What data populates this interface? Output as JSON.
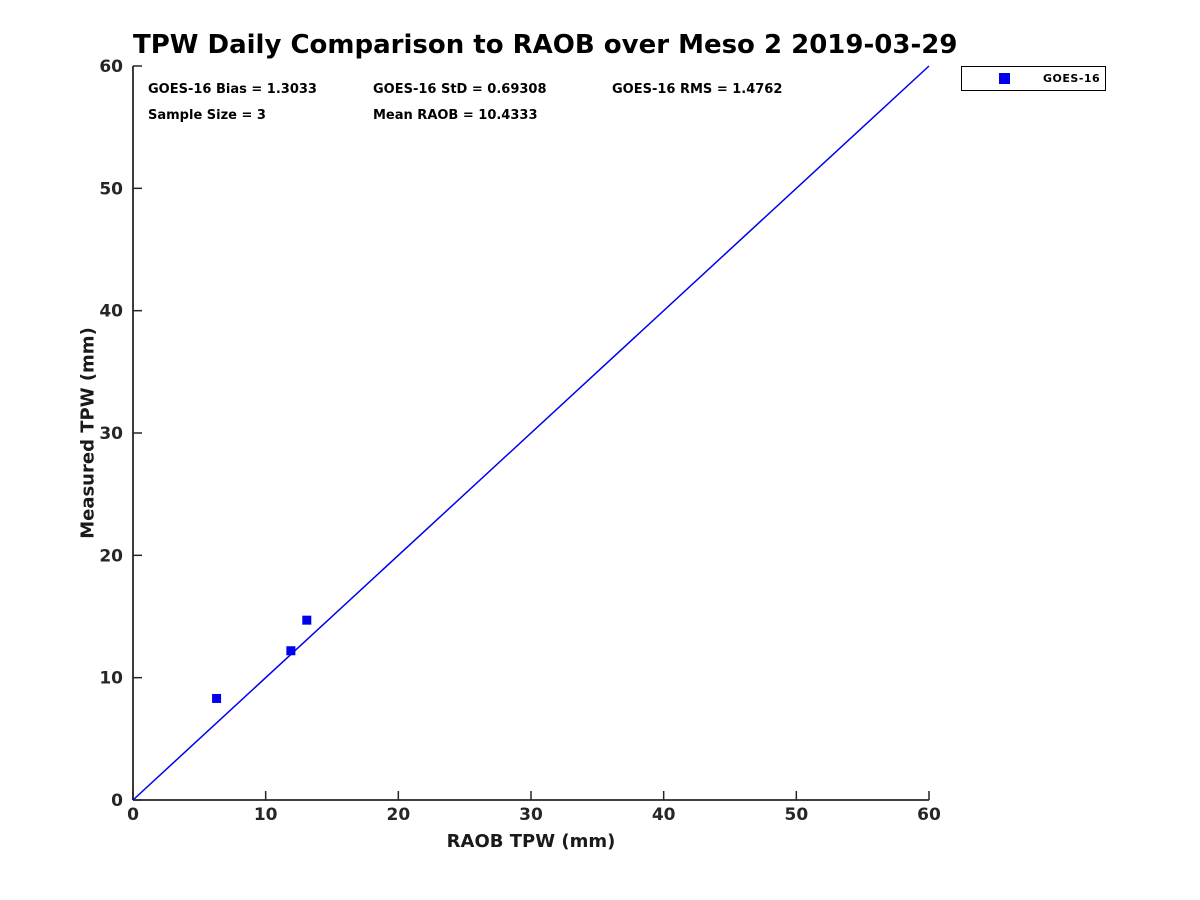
{
  "page": {
    "background": "#ffffff"
  },
  "stats": {
    "bias": "GOES-16 Bias = 1.3033",
    "std": "GOES-16 StD = 0.69308",
    "rms": "GOES-16 RMS = 1.4762",
    "sample_size": "Sample Size = 3",
    "mean_raob": "Mean RAOB = 10.4333"
  },
  "legend": {
    "entries": [
      {
        "label": "GOES-16",
        "marker": "square-icon",
        "color": "#0000ee"
      }
    ]
  },
  "chart_data": {
    "type": "scatter",
    "title": "TPW Daily Comparison to RAOB over Meso 2 2019-03-29",
    "xlabel": "RAOB TPW (mm)",
    "ylabel": "Measured TPW (mm)",
    "xlim": [
      0,
      60
    ],
    "ylim": [
      0,
      60
    ],
    "xticks": [
      0,
      10,
      20,
      30,
      40,
      50,
      60
    ],
    "yticks": [
      0,
      10,
      20,
      30,
      40,
      50,
      60
    ],
    "grid": false,
    "legend_position": "outside-top-right",
    "axis_color": "#262626",
    "series": [
      {
        "name": "GOES-16",
        "type": "scatter",
        "marker": "square",
        "color": "#0000ee",
        "marker_size_px": 9,
        "points": [
          [
            6.3,
            8.3
          ],
          [
            11.9,
            12.2
          ],
          [
            13.1,
            14.7
          ]
        ]
      }
    ],
    "reference_line": {
      "label": "1:1 line",
      "from": [
        0,
        0
      ],
      "to": [
        60,
        60
      ],
      "color": "#0000ee"
    },
    "annotations": [
      "GOES-16 Bias = 1.3033",
      "GOES-16 StD = 0.69308",
      "GOES-16 RMS = 1.4762",
      "Sample Size = 3",
      "Mean RAOB = 10.4333"
    ]
  }
}
